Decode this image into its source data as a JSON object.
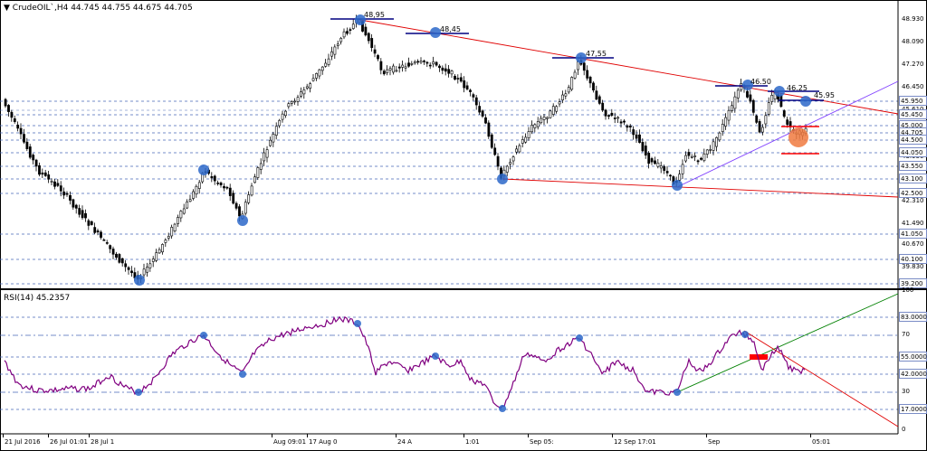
{
  "header": {
    "symbol_line": "CrudeOIL`,H4  44.745 44.755 44.675 44.705",
    "rsi_line": "RSI(14) 45.2357"
  },
  "price_axis": {
    "labels": [
      "48.930",
      "48.090",
      "47.270",
      "46.450",
      "45.610",
      "44.790",
      "43.950",
      "43.130",
      "42.310",
      "41.490",
      "40.670",
      "39.830",
      "39.070"
    ],
    "badges": [
      "45.950",
      "45.450",
      "45.000",
      "44.705",
      "44.500",
      "44.050",
      "43.550",
      "43.100",
      "42.500",
      "41.050",
      "40.100",
      "39.200"
    ]
  },
  "rsi_axis": {
    "labels": [
      "100",
      "70",
      "30",
      "0"
    ],
    "badges": [
      "83.0000",
      "55.0000",
      "42.0000",
      "17.0000"
    ]
  },
  "annotations": [
    "48,95",
    "48,45",
    "47,55",
    "46.50",
    "46.25",
    "45.95"
  ],
  "time_axis": [
    "21 Jul 2016",
    "26 Jul 01:01",
    "28 Jul 1",
    "Aug 09:01",
    "17 Aug 0",
    "24 A",
    "1:01",
    "Sep 05:",
    "12 Sep 17:01",
    "Sep",
    "05:01"
  ],
  "colors": {
    "candle": "#000000",
    "rsi_line": "#800080",
    "grid": "#4a6ab8",
    "resistance_line": "#e00000",
    "support_line": "#8040ff",
    "rsi_trend_up": "#008000",
    "rsi_trend_down": "#e00000",
    "marker_blue": "#2b67c9",
    "marker_orange": "#f07a40",
    "red_mark": "#ff0000"
  }
}
